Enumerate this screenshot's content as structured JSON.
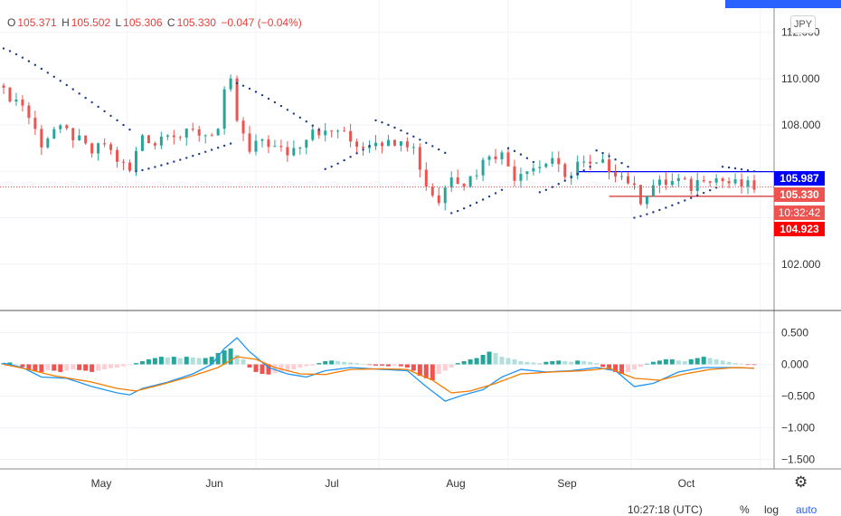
{
  "legend": {
    "open_label": "O",
    "open": "105.371",
    "high_label": "H",
    "high": "105.502",
    "low_label": "L",
    "low": "105.306",
    "close_label": "C",
    "close": "105.330",
    "change": "−0.047 (−0.04%)"
  },
  "currency_button": "JPY",
  "price_tags": {
    "upper_line": "105.987",
    "last_price": "105.330",
    "countdown": "10:32:42",
    "lower_line": "104.923"
  },
  "footer": {
    "time": "10:27:18 (UTC)",
    "percent": "%",
    "log": "log",
    "auto": "auto"
  },
  "colors": {
    "up": "#26a69a",
    "down": "#ef5350",
    "psar": "#1b3a8c",
    "macd": "#2196f3",
    "signal": "#f57c00",
    "hist_up_strong": "#26a69a",
    "hist_up_weak": "#b2dfdb",
    "hist_down_strong": "#ef5350",
    "hist_down_weak": "#ffcdd2",
    "upper_line": "#0000ff",
    "lower_line": "#d32f2f"
  },
  "chart_data": [
    {
      "type": "candlestick",
      "title": "",
      "x_ticks": [
        "May",
        "Jun",
        "Jul",
        "Aug",
        "Sep",
        "Oct"
      ],
      "y_ticks": [
        "112.000",
        "110.000",
        "108.000",
        "102.000"
      ],
      "ylim": [
        100.0,
        113.0
      ],
      "grid": true,
      "close_path": [
        [
          0,
          109.4
        ],
        [
          3,
          108.9
        ],
        [
          6,
          107.2
        ],
        [
          8,
          107.8
        ],
        [
          10,
          107.7
        ],
        [
          12,
          107.3
        ],
        [
          14,
          106.8
        ],
        [
          16,
          107.2
        ],
        [
          18,
          106.5
        ],
        [
          20,
          106.0
        ],
        [
          22,
          107.6
        ],
        [
          24,
          107.2
        ],
        [
          26,
          107.8
        ],
        [
          28,
          107.5
        ],
        [
          30,
          107.7
        ],
        [
          32,
          107.6
        ],
        [
          34,
          107.8
        ],
        [
          35,
          109.3
        ],
        [
          36,
          109.8
        ],
        [
          37,
          108.2
        ],
        [
          39,
          106.8
        ],
        [
          41,
          107.4
        ],
        [
          43,
          107.0
        ],
        [
          45,
          106.8
        ],
        [
          47,
          107.2
        ],
        [
          49,
          107.9
        ],
        [
          51,
          107.6
        ],
        [
          53,
          107.8
        ],
        [
          55,
          107.3
        ],
        [
          57,
          107.1
        ],
        [
          59,
          107.4
        ],
        [
          61,
          107.2
        ],
        [
          63,
          107.5
        ],
        [
          65,
          107.0
        ],
        [
          67,
          105.4
        ],
        [
          69,
          104.7
        ],
        [
          71,
          105.9
        ],
        [
          73,
          105.5
        ],
        [
          75,
          106.0
        ],
        [
          77,
          106.8
        ],
        [
          79,
          106.7
        ],
        [
          81,
          105.8
        ],
        [
          83,
          106.2
        ],
        [
          85,
          106.2
        ],
        [
          87,
          106.6
        ],
        [
          89,
          105.6
        ],
        [
          91,
          106.4
        ],
        [
          93,
          106.2
        ],
        [
          95,
          106.3
        ],
        [
          97,
          106.0
        ],
        [
          99,
          105.6
        ],
        [
          101,
          104.8
        ],
        [
          103,
          105.4
        ],
        [
          105,
          105.5
        ],
        [
          107,
          105.6
        ],
        [
          109,
          105.3
        ],
        [
          111,
          105.8
        ],
        [
          113,
          105.7
        ],
        [
          115,
          105.5
        ],
        [
          117,
          105.4
        ],
        [
          119,
          105.33
        ]
      ],
      "psar_segments": [
        {
          "side": "above",
          "from": [
            0,
            111.3
          ],
          "to": [
            20,
            107.8
          ]
        },
        {
          "side": "below",
          "from": [
            21,
            106.0
          ],
          "to": [
            36,
            107.2
          ]
        },
        {
          "side": "above",
          "from": [
            37,
            109.8
          ],
          "to": [
            50,
            107.8
          ]
        },
        {
          "side": "below",
          "from": [
            51,
            106.1
          ],
          "to": [
            58,
            107.1
          ]
        },
        {
          "side": "above",
          "from": [
            59,
            108.2
          ],
          "to": [
            70,
            106.8
          ]
        },
        {
          "side": "below",
          "from": [
            71,
            104.2
          ],
          "to": [
            79,
            105.2
          ]
        },
        {
          "side": "above",
          "from": [
            80,
            107.0
          ],
          "to": [
            84,
            106.4
          ]
        },
        {
          "side": "below",
          "from": [
            85,
            105.1
          ],
          "to": [
            93,
            106.2
          ]
        },
        {
          "side": "above",
          "from": [
            94,
            106.9
          ],
          "to": [
            99,
            106.2
          ]
        },
        {
          "side": "below",
          "from": [
            100,
            104.0
          ],
          "to": [
            113,
            105.3
          ]
        },
        {
          "side": "above",
          "from": [
            114,
            106.2
          ],
          "to": [
            119,
            106.0
          ]
        }
      ],
      "horizontal_lines": [
        {
          "price": 105.987,
          "from": 91,
          "to": 121,
          "color": "#0000ff"
        },
        {
          "price": 104.923,
          "from": 96,
          "to": 121,
          "color": "#d32f2f"
        }
      ],
      "last_price": 105.33
    },
    {
      "type": "bar+line",
      "title": "",
      "y_ticks": [
        "0.500",
        "0.000",
        "−0.500",
        "−1.000",
        "−1.500"
      ],
      "ylim": [
        -1.65,
        0.85
      ],
      "macd_path": [
        [
          0,
          0.02
        ],
        [
          3,
          -0.05
        ],
        [
          6,
          -0.2
        ],
        [
          10,
          -0.22
        ],
        [
          14,
          -0.35
        ],
        [
          18,
          -0.45
        ],
        [
          20,
          -0.48
        ],
        [
          22,
          -0.38
        ],
        [
          26,
          -0.28
        ],
        [
          30,
          -0.15
        ],
        [
          33,
          0.0
        ],
        [
          35,
          0.25
        ],
        [
          37,
          0.42
        ],
        [
          39,
          0.2
        ],
        [
          42,
          -0.05
        ],
        [
          45,
          -0.15
        ],
        [
          48,
          -0.2
        ],
        [
          51,
          -0.1
        ],
        [
          55,
          -0.05
        ],
        [
          60,
          -0.08
        ],
        [
          64,
          -0.1
        ],
        [
          67,
          -0.35
        ],
        [
          70,
          -0.58
        ],
        [
          73,
          -0.48
        ],
        [
          76,
          -0.4
        ],
        [
          79,
          -0.2
        ],
        [
          82,
          -0.08
        ],
        [
          86,
          -0.12
        ],
        [
          90,
          -0.1
        ],
        [
          94,
          -0.05
        ],
        [
          97,
          -0.1
        ],
        [
          100,
          -0.35
        ],
        [
          103,
          -0.3
        ],
        [
          107,
          -0.12
        ],
        [
          111,
          -0.05
        ],
        [
          115,
          -0.05
        ],
        [
          119,
          -0.06
        ]
      ],
      "signal_path": [
        [
          0,
          0.0
        ],
        [
          4,
          -0.08
        ],
        [
          8,
          -0.18
        ],
        [
          14,
          -0.28
        ],
        [
          18,
          -0.38
        ],
        [
          21,
          -0.42
        ],
        [
          25,
          -0.32
        ],
        [
          30,
          -0.18
        ],
        [
          34,
          -0.05
        ],
        [
          37,
          0.12
        ],
        [
          40,
          0.08
        ],
        [
          43,
          -0.05
        ],
        [
          47,
          -0.15
        ],
        [
          51,
          -0.16
        ],
        [
          55,
          -0.08
        ],
        [
          60,
          -0.07
        ],
        [
          64,
          -0.08
        ],
        [
          68,
          -0.25
        ],
        [
          71,
          -0.45
        ],
        [
          74,
          -0.42
        ],
        [
          78,
          -0.3
        ],
        [
          82,
          -0.15
        ],
        [
          87,
          -0.12
        ],
        [
          92,
          -0.1
        ],
        [
          96,
          -0.06
        ],
        [
          100,
          -0.22
        ],
        [
          104,
          -0.25
        ],
        [
          108,
          -0.15
        ],
        [
          112,
          -0.08
        ],
        [
          116,
          -0.05
        ],
        [
          119,
          -0.06
        ]
      ],
      "histogram": [
        0.02,
        0.03,
        0.01,
        -0.04,
        -0.08,
        -0.1,
        -0.12,
        -0.09,
        -0.1,
        -0.12,
        -0.1,
        -0.08,
        -0.09,
        -0.1,
        -0.12,
        -0.1,
        -0.08,
        -0.06,
        -0.05,
        -0.03,
        -0.01,
        0.02,
        0.05,
        0.08,
        0.1,
        0.12,
        0.11,
        0.12,
        0.1,
        0.12,
        0.11,
        0.1,
        0.1,
        0.12,
        0.18,
        0.22,
        0.25,
        0.15,
        0.08,
        -0.05,
        -0.12,
        -0.15,
        -0.16,
        -0.14,
        -0.12,
        -0.1,
        -0.08,
        -0.05,
        -0.03,
        -0.02,
        0.02,
        0.05,
        0.06,
        0.05,
        0.04,
        0.03,
        0.02,
        0.01,
        -0.01,
        -0.02,
        -0.02,
        -0.03,
        -0.02,
        -0.03,
        -0.05,
        -0.1,
        -0.18,
        -0.22,
        -0.25,
        -0.15,
        -0.1,
        -0.05,
        0.02,
        0.05,
        0.08,
        0.1,
        0.15,
        0.2,
        0.18,
        0.12,
        0.1,
        0.08,
        0.05,
        0.04,
        0.03,
        0.02,
        0.04,
        0.05,
        0.06,
        0.05,
        0.04,
        0.06,
        0.05,
        0.04,
        0.02,
        -0.04,
        -0.08,
        -0.12,
        -0.15,
        -0.12,
        -0.08,
        -0.04,
        0.01,
        0.04,
        0.06,
        0.08,
        0.08,
        0.06,
        0.05,
        0.08,
        0.1,
        0.12,
        0.1,
        0.08,
        0.06,
        0.04,
        0.02,
        0.01,
        -0.01,
        -0.01
      ]
    }
  ]
}
